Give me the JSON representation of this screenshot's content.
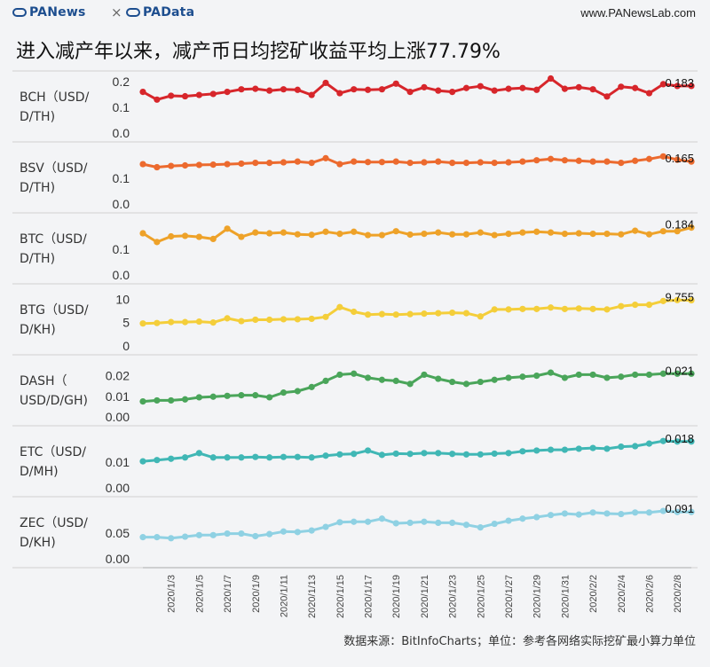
{
  "header": {
    "logo_left": "PANews",
    "separator": "×",
    "logo_right": "PAData",
    "site": "www.PANewsLab.com"
  },
  "title": "进入减产年以来，减产币日均挖矿收益平均上涨77.79%",
  "footer": "数据来源：BitInfoCharts；单位：参考各网络实际挖矿最小算力单位",
  "chart_data": {
    "type": "line",
    "x": [
      "2020/1/1",
      "2020/1/2",
      "2020/1/3",
      "2020/1/4",
      "2020/1/5",
      "2020/1/6",
      "2020/1/7",
      "2020/1/8",
      "2020/1/9",
      "2020/1/10",
      "2020/1/11",
      "2020/1/12",
      "2020/1/13",
      "2020/1/14",
      "2020/1/15",
      "2020/1/16",
      "2020/1/17",
      "2020/1/18",
      "2020/1/19",
      "2020/1/20",
      "2020/1/21",
      "2020/1/22",
      "2020/1/23",
      "2020/1/24",
      "2020/1/25",
      "2020/1/26",
      "2020/1/27",
      "2020/1/28",
      "2020/1/29",
      "2020/1/30",
      "2020/1/31",
      "2020/2/1",
      "2020/2/2",
      "2020/2/3",
      "2020/2/4",
      "2020/2/5",
      "2020/2/6",
      "2020/2/7",
      "2020/2/8",
      "2020/2/9"
    ],
    "x_tick_labels": [
      "2020/1/3",
      "2020/1/5",
      "2020/1/7",
      "2020/1/9",
      "2020/1/11",
      "2020/1/13",
      "2020/1/15",
      "2020/1/17",
      "2020/1/19",
      "2020/1/21",
      "2020/1/23",
      "2020/1/25",
      "2020/1/27",
      "2020/1/29",
      "2020/1/31",
      "2020/2/2",
      "2020/2/4",
      "2020/2/6",
      "2020/2/8"
    ],
    "grid": false,
    "panels": [
      {
        "label_lines": [
          "BCH（USD/",
          "D/TH)"
        ],
        "color": "#d7262b",
        "ylim": [
          0,
          0.2
        ],
        "yticks": [
          "0.2",
          "0.1",
          "0.0"
        ],
        "end_label": "0.183",
        "values": [
          0.16,
          0.13,
          0.145,
          0.143,
          0.148,
          0.152,
          0.16,
          0.17,
          0.172,
          0.165,
          0.17,
          0.168,
          0.148,
          0.195,
          0.155,
          0.17,
          0.168,
          0.17,
          0.192,
          0.16,
          0.178,
          0.165,
          0.16,
          0.175,
          0.182,
          0.165,
          0.172,
          0.175,
          0.168,
          0.212,
          0.172,
          0.178,
          0.17,
          0.142,
          0.18,
          0.175,
          0.155,
          0.19,
          0.183,
          0.183
        ]
      },
      {
        "label_lines": [
          "BSV（USD/",
          "D/TH)"
        ],
        "color": "#ec6a2e",
        "ylim": [
          0,
          0.2
        ],
        "yticks": [
          "0.1",
          "0.0"
        ],
        "end_label": "0.165",
        "values": [
          0.155,
          0.143,
          0.148,
          0.15,
          0.152,
          0.153,
          0.155,
          0.157,
          0.16,
          0.16,
          0.162,
          0.165,
          0.16,
          0.178,
          0.155,
          0.165,
          0.163,
          0.163,
          0.165,
          0.16,
          0.162,
          0.165,
          0.16,
          0.16,
          0.162,
          0.16,
          0.162,
          0.165,
          0.17,
          0.175,
          0.17,
          0.168,
          0.165,
          0.165,
          0.16,
          0.168,
          0.175,
          0.185,
          0.172,
          0.165
        ]
      },
      {
        "label_lines": [
          "BTC（USD/",
          "D/TH)"
        ],
        "color": "#eea229",
        "ylim": [
          0,
          0.2
        ],
        "yticks": [
          "0.1",
          "0.0"
        ],
        "end_label": "0.184",
        "values": [
          0.162,
          0.128,
          0.15,
          0.152,
          0.148,
          0.14,
          0.18,
          0.148,
          0.165,
          0.162,
          0.165,
          0.158,
          0.156,
          0.168,
          0.16,
          0.168,
          0.155,
          0.155,
          0.17,
          0.157,
          0.16,
          0.165,
          0.158,
          0.158,
          0.165,
          0.155,
          0.16,
          0.165,
          0.168,
          0.165,
          0.16,
          0.162,
          0.16,
          0.16,
          0.158,
          0.172,
          0.158,
          0.17,
          0.17,
          0.184
        ]
      },
      {
        "label_lines": [
          "BTG（USD/",
          "D/KH)"
        ],
        "color": "#f4ce3a",
        "ylim": [
          0,
          11
        ],
        "yticks": [
          "10",
          "5",
          "0"
        ],
        "end_label": "9.755",
        "values": [
          4.8,
          4.9,
          5.1,
          5.1,
          5.2,
          5.0,
          5.9,
          5.3,
          5.6,
          5.6,
          5.7,
          5.7,
          5.8,
          6.2,
          8.3,
          7.3,
          6.7,
          6.8,
          6.7,
          6.8,
          6.9,
          7.0,
          7.1,
          7.0,
          6.3,
          7.8,
          7.8,
          7.9,
          7.9,
          8.2,
          7.9,
          8.0,
          7.9,
          7.8,
          8.5,
          8.8,
          8.8,
          9.6,
          9.8,
          9.755
        ]
      },
      {
        "label_lines": [
          "DASH（",
          "USD/D/GH)"
        ],
        "color": "#4aa55a",
        "ylim": [
          0,
          0.025
        ],
        "yticks": [
          "0.02",
          "0.01",
          "0.00"
        ],
        "end_label": "0.021",
        "values": [
          0.0075,
          0.008,
          0.008,
          0.0085,
          0.0095,
          0.0098,
          0.0102,
          0.0105,
          0.0105,
          0.0095,
          0.0118,
          0.0125,
          0.0145,
          0.0175,
          0.0205,
          0.021,
          0.019,
          0.018,
          0.0175,
          0.016,
          0.0205,
          0.0185,
          0.017,
          0.016,
          0.017,
          0.018,
          0.019,
          0.0195,
          0.02,
          0.0215,
          0.019,
          0.0205,
          0.0205,
          0.019,
          0.0195,
          0.0205,
          0.0205,
          0.021,
          0.021,
          0.021
        ]
      },
      {
        "label_lines": [
          "ETC（USD/",
          "D/MH)"
        ],
        "color": "#40b7b5",
        "ylim": [
          0,
          0.02
        ],
        "yticks": [
          "0.01",
          "0.00"
        ],
        "end_label": "0.018",
        "values": [
          0.0103,
          0.0108,
          0.0113,
          0.0118,
          0.0135,
          0.0118,
          0.0118,
          0.0118,
          0.012,
          0.0118,
          0.012,
          0.012,
          0.0118,
          0.0125,
          0.013,
          0.0132,
          0.0145,
          0.0128,
          0.0133,
          0.0132,
          0.0135,
          0.0135,
          0.0132,
          0.013,
          0.013,
          0.0133,
          0.0135,
          0.0142,
          0.0145,
          0.0148,
          0.0148,
          0.0152,
          0.0155,
          0.0152,
          0.016,
          0.0162,
          0.0172,
          0.0182,
          0.018,
          0.018
        ]
      },
      {
        "label_lines": [
          "ZEC（USD/",
          "D/KH)"
        ],
        "color": "#8fd1e3",
        "ylim": [
          0,
          0.1
        ],
        "yticks": [
          "0.05",
          "0.00"
        ],
        "end_label": "0.091",
        "values": [
          0.042,
          0.042,
          0.04,
          0.043,
          0.046,
          0.046,
          0.049,
          0.049,
          0.044,
          0.048,
          0.053,
          0.052,
          0.055,
          0.062,
          0.071,
          0.072,
          0.072,
          0.078,
          0.069,
          0.07,
          0.072,
          0.07,
          0.07,
          0.066,
          0.061,
          0.068,
          0.074,
          0.078,
          0.081,
          0.085,
          0.088,
          0.086,
          0.09,
          0.088,
          0.087,
          0.09,
          0.09,
          0.093,
          0.091,
          0.091
        ]
      }
    ]
  }
}
